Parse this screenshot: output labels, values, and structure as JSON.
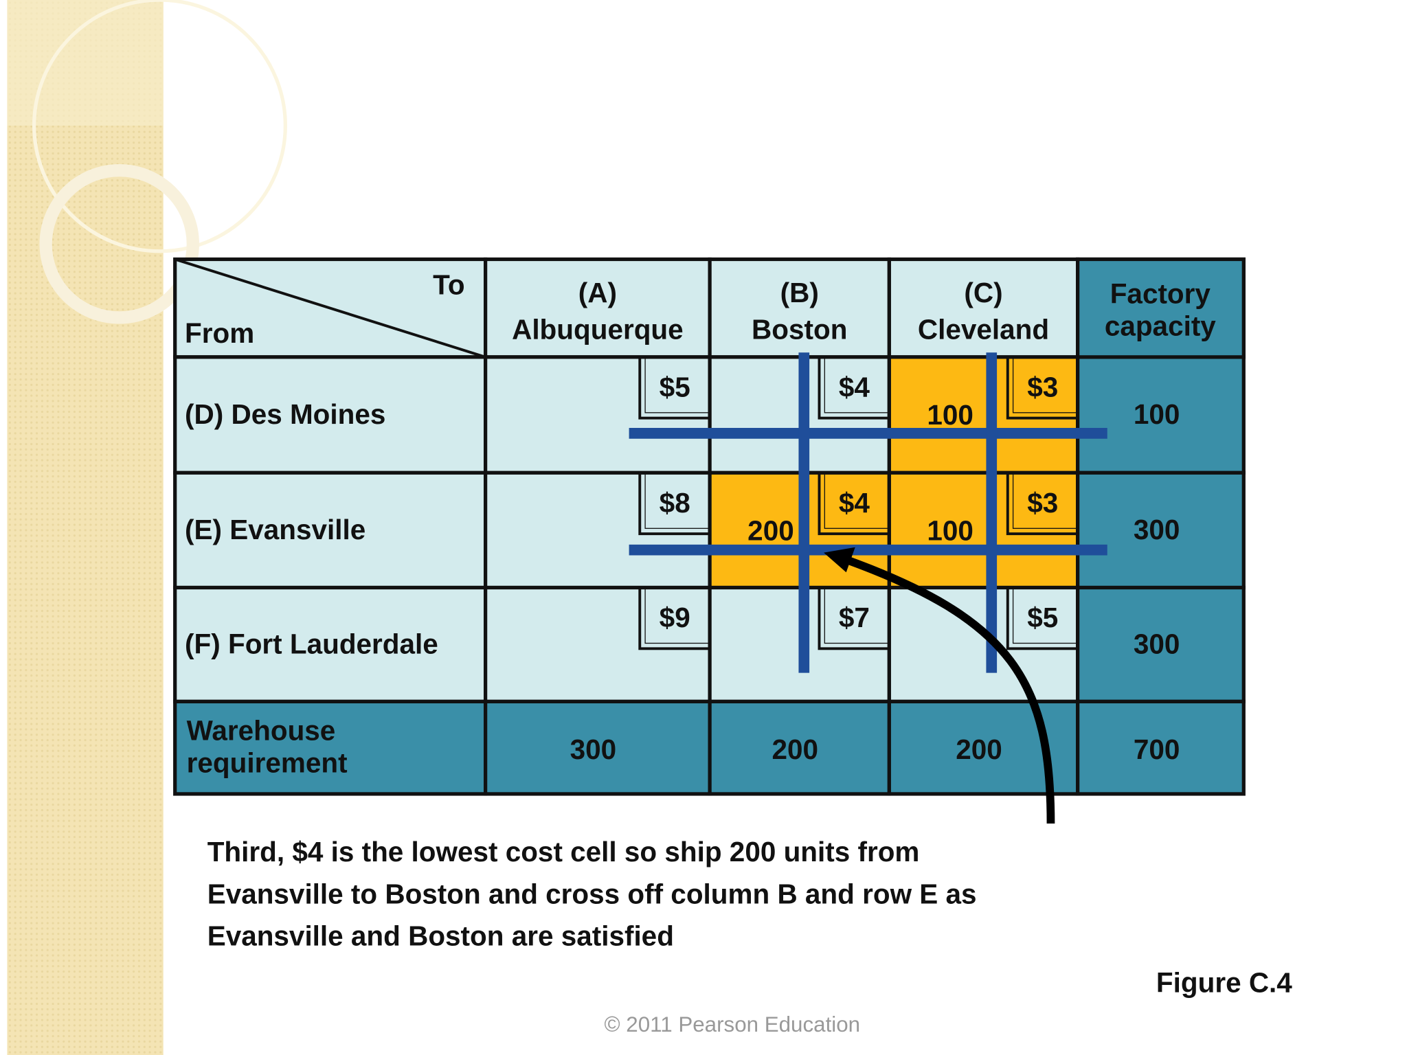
{
  "slide": {
    "table": {
      "corner": {
        "to": "To",
        "from": "From"
      },
      "columns": [
        {
          "code": "(A)",
          "name": "Albuquerque"
        },
        {
          "code": "(B)",
          "name": "Boston"
        },
        {
          "code": "(C)",
          "name": "Cleveland"
        }
      ],
      "capacity_header": [
        "Factory",
        "capacity"
      ],
      "rows": [
        {
          "label": "(D) Des Moines",
          "costs": [
            "$5",
            "$4",
            "$3"
          ],
          "shipments": [
            null,
            null,
            100
          ],
          "capacity": 100
        },
        {
          "label": "(E) Evansville",
          "costs": [
            "$8",
            "$4",
            "$3"
          ],
          "shipments": [
            null,
            200,
            100
          ],
          "capacity": 300
        },
        {
          "label": "(F) Fort Lauderdale",
          "costs": [
            "$9",
            "$7",
            "$5"
          ],
          "shipments": [
            null,
            null,
            null
          ],
          "capacity": 300
        }
      ],
      "requirement": {
        "label": [
          "Warehouse",
          "requirement"
        ],
        "values": [
          300,
          200,
          200
        ],
        "total": 700
      }
    },
    "caption": [
      "Third, $4 is the lowest cost cell so ship 200 units from",
      "Evansville to Boston and cross off column B and row E as",
      "Evansville and Boston are satisfied"
    ],
    "figure": "Figure C.4",
    "copyright": "© 2011 Pearson Education"
  }
}
